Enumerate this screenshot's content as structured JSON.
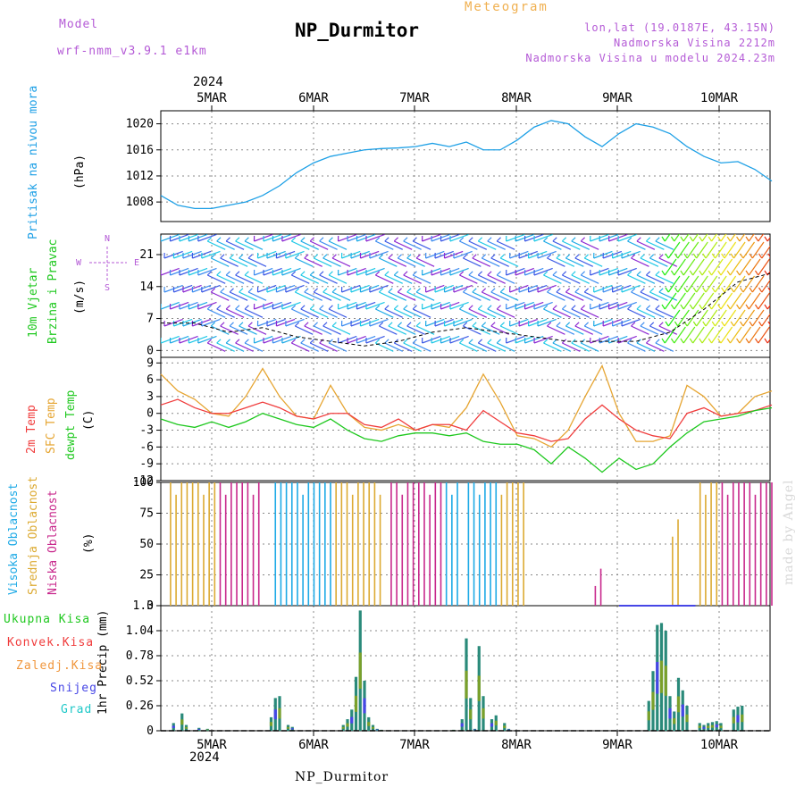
{
  "header": {
    "model_label": "Model",
    "model_name": "wrf-nmm_v3.9.1 e1km",
    "title": "NP_Durmitor",
    "meteogram_label": "Meteogram",
    "coords": "lon,lat (19.0187E, 43.15N)",
    "elevation": "Nadmorska Visina 2212m",
    "model_elevation": "Nadmorska Visina u modelu 2024.23m",
    "watermark": "made by Angel",
    "footer": "NP_Durmitor"
  },
  "colors": {
    "pressure": "#1ea0e6",
    "temp2m": "#f03c3c",
    "sfc": "#e6a532",
    "dewpt": "#1ec81e",
    "high": "#1eaae6",
    "mid": "#dcaa32",
    "low": "#c8288c",
    "total": "#1ec81e",
    "conv": "#f03c3c",
    "frozen": "#f0963c",
    "snow": "#4646e6",
    "hail": "#1ec8c8"
  },
  "x_axis": {
    "year_top": "2024",
    "year_bottom": "2024",
    "days": [
      "5MAR",
      "6MAR",
      "7MAR",
      "8MAR",
      "9MAR",
      "10MAR"
    ]
  },
  "panels": {
    "pressure": {
      "ylabel1": "Pritisak na nivou mora",
      "ylabel2": "(hPa)"
    },
    "wind": {
      "ylabel1": "10m Vjetar",
      "ylabel1b": "Brzina i Pravac",
      "ylabel2": "(m/s)",
      "compass": {
        "n": "N",
        "s": "S",
        "w": "W",
        "e": "E"
      }
    },
    "temp": {
      "ylabel1": "2m Temp",
      "ylabel1b": "SFC Temp",
      "ylabel1c": "dewpt Temp",
      "ylabel2": "(C)"
    },
    "cloud": {
      "ylabel1": "Visoka Oblacnost",
      "ylabel1b": "Srednja Oblacnost",
      "ylabel1c": "Niska Oblacnost",
      "ylabel2": "(%)"
    },
    "precip": {
      "ylabel2": "1hr Precip (mm)",
      "legend": [
        "Ukupna Kisa",
        "Konvek.Kisa",
        "Zaledj.Kisa",
        "Snijeg",
        "Grad"
      ]
    }
  },
  "chart_data": [
    {
      "type": "line",
      "title": "",
      "ylabel": "Pritisak na nivou mora (hPa)",
      "yticks": [
        "1008",
        "1012",
        "1016",
        "1020"
      ],
      "ylim": [
        1005,
        1022
      ],
      "xlim": [
        0,
        144
      ],
      "series": [
        {
          "x": [
            0,
            4,
            8,
            12,
            16,
            20,
            24,
            28,
            32,
            36,
            40,
            44,
            48,
            52,
            56,
            60,
            64,
            68,
            72,
            76,
            80,
            84,
            88,
            92,
            96,
            100,
            104,
            108,
            112,
            116,
            120,
            124,
            128,
            132,
            136,
            140,
            144
          ],
          "values": [
            1009,
            1007.5,
            1007,
            1007,
            1007.5,
            1008,
            1009,
            1010.5,
            1012.5,
            1014,
            1015,
            1015.5,
            1016,
            1016.2,
            1016.3,
            1016.5,
            1017,
            1016.5,
            1017.2,
            1016,
            1016,
            1017.5,
            1019.5,
            1020.5,
            1020,
            1018,
            1016.5,
            1018.5,
            1020,
            1019.5,
            1018.5,
            1016.5,
            1015,
            1014,
            1014.2,
            1013,
            1011.2
          ]
        }
      ]
    },
    {
      "type": "line",
      "title": "",
      "ylabel": "10m Vjetar Brzina i Pravac (m/s)",
      "yticks": [
        "0",
        "7",
        "14",
        "21"
      ],
      "ylim": [
        -1.5,
        25.5
      ],
      "xlim": [
        0,
        144
      ],
      "series": [
        {
          "x": [
            0,
            8,
            16,
            24,
            32,
            40,
            48,
            56,
            64,
            72,
            80,
            88,
            96,
            104,
            112,
            120,
            128,
            136,
            144
          ],
          "values": [
            6,
            6,
            4,
            5,
            3,
            2,
            1,
            2,
            4,
            5,
            4,
            3,
            2,
            2,
            2,
            4,
            9,
            15,
            17
          ]
        }
      ]
    },
    {
      "type": "line",
      "title": "",
      "ylabel": "2m Temp / SFC Temp / dewpt Temp (C)",
      "yticks": [
        "-12",
        "-9",
        "-6",
        "-3",
        "0",
        "3",
        "6",
        "9"
      ],
      "ylim": [
        -12,
        10
      ],
      "xlim": [
        0,
        144
      ],
      "series": [
        {
          "name": "2m Temp",
          "x": [
            0,
            4,
            8,
            12,
            16,
            20,
            24,
            28,
            32,
            36,
            40,
            44,
            48,
            52,
            56,
            60,
            64,
            68,
            72,
            76,
            80,
            84,
            88,
            92,
            96,
            100,
            104,
            108,
            112,
            116,
            120,
            124,
            128,
            132,
            136,
            140,
            144
          ],
          "values": [
            1.5,
            2.5,
            1,
            0,
            0,
            1,
            2,
            1,
            -0.5,
            -1,
            0,
            0,
            -2,
            -2.5,
            -1,
            -3,
            -2,
            -2,
            -3,
            0.5,
            -1.5,
            -3.5,
            -4,
            -5,
            -4.5,
            -1,
            1.5,
            -1,
            -3,
            -4,
            -4.5,
            0,
            1,
            -0.5,
            0,
            0.5,
            1.5
          ]
        },
        {
          "name": "SFC Temp",
          "x": [
            0,
            4,
            8,
            12,
            16,
            20,
            24,
            28,
            32,
            36,
            40,
            44,
            48,
            52,
            56,
            60,
            64,
            68,
            72,
            76,
            80,
            84,
            88,
            92,
            96,
            100,
            104,
            108,
            112,
            116,
            120,
            124,
            128,
            132,
            136,
            140,
            144
          ],
          "values": [
            7,
            4,
            2.5,
            0,
            -0.5,
            3,
            8,
            3,
            -0.5,
            -1,
            5,
            0,
            -2.5,
            -3,
            -2,
            -3,
            -2,
            -2.5,
            1,
            7,
            2,
            -4,
            -4.5,
            -6,
            -3,
            3,
            8.5,
            0,
            -5,
            -5,
            -4,
            5,
            3,
            -0.5,
            0,
            3,
            4
          ]
        },
        {
          "name": "dewpt Temp",
          "x": [
            0,
            4,
            8,
            12,
            16,
            20,
            24,
            28,
            32,
            36,
            40,
            44,
            48,
            52,
            56,
            60,
            64,
            68,
            72,
            76,
            80,
            84,
            88,
            92,
            96,
            100,
            104,
            108,
            112,
            116,
            120,
            124,
            128,
            132,
            136,
            140,
            144
          ],
          "values": [
            -1,
            -2,
            -2.5,
            -1.5,
            -2.5,
            -1.5,
            0,
            -1,
            -2,
            -2.5,
            -1,
            -3,
            -4.5,
            -5,
            -4,
            -3.5,
            -3.5,
            -4,
            -3.5,
            -5,
            -5.5,
            -5.5,
            -6.5,
            -9,
            -6,
            -8,
            -10.5,
            -8,
            -10,
            -9,
            -6,
            -3.5,
            -1.5,
            -1,
            -0.5,
            0.5,
            1
          ]
        }
      ]
    },
    {
      "type": "bar",
      "title": "",
      "ylabel": "Visoka / Srednja / Niska Oblacnost (%)",
      "yticks": [
        "0",
        "25",
        "50",
        "75",
        "100"
      ],
      "ylim": [
        0,
        100
      ],
      "xlim": [
        0,
        144
      ],
      "description_series": [
        "Visoka Oblacnost",
        "Srednja Oblacnost",
        "Niska Oblacnost"
      ]
    },
    {
      "type": "bar",
      "title": "",
      "ylabel": "1hr Precip (mm)",
      "yticks": [
        "0",
        "0.26",
        "0.52",
        "0.78",
        "1.04",
        "1.3"
      ],
      "ylim": [
        0,
        1.3
      ],
      "xlim": [
        0,
        144
      ],
      "x": [
        3,
        5,
        6,
        9,
        11,
        26,
        27,
        28,
        30,
        31,
        43,
        44,
        45,
        46,
        47,
        48,
        49,
        50,
        51,
        52,
        69,
        71,
        72,
        73,
        74,
        75,
        76,
        78,
        79,
        81,
        82,
        115,
        116,
        117,
        118,
        119,
        120,
        121,
        122,
        123,
        124,
        127,
        128,
        129,
        130,
        131,
        132,
        135,
        136,
        137
      ],
      "values": [
        0.08,
        0.18,
        0.06,
        0.03,
        0.02,
        0.14,
        0.34,
        0.36,
        0.06,
        0.04,
        0.06,
        0.12,
        0.22,
        0.56,
        1.25,
        0.52,
        0.14,
        0.06,
        0.02,
        0.01,
        0.01,
        0.12,
        0.96,
        0.34,
        0.02,
        0.88,
        0.36,
        0.12,
        0.16,
        0.08,
        0.02,
        0.31,
        0.62,
        1.1,
        1.12,
        1.04,
        0.36,
        0.2,
        0.55,
        0.42,
        0.26,
        0.08,
        0.06,
        0.08,
        0.09,
        0.1,
        0.08,
        0.22,
        0.25,
        0.26
      ]
    }
  ]
}
